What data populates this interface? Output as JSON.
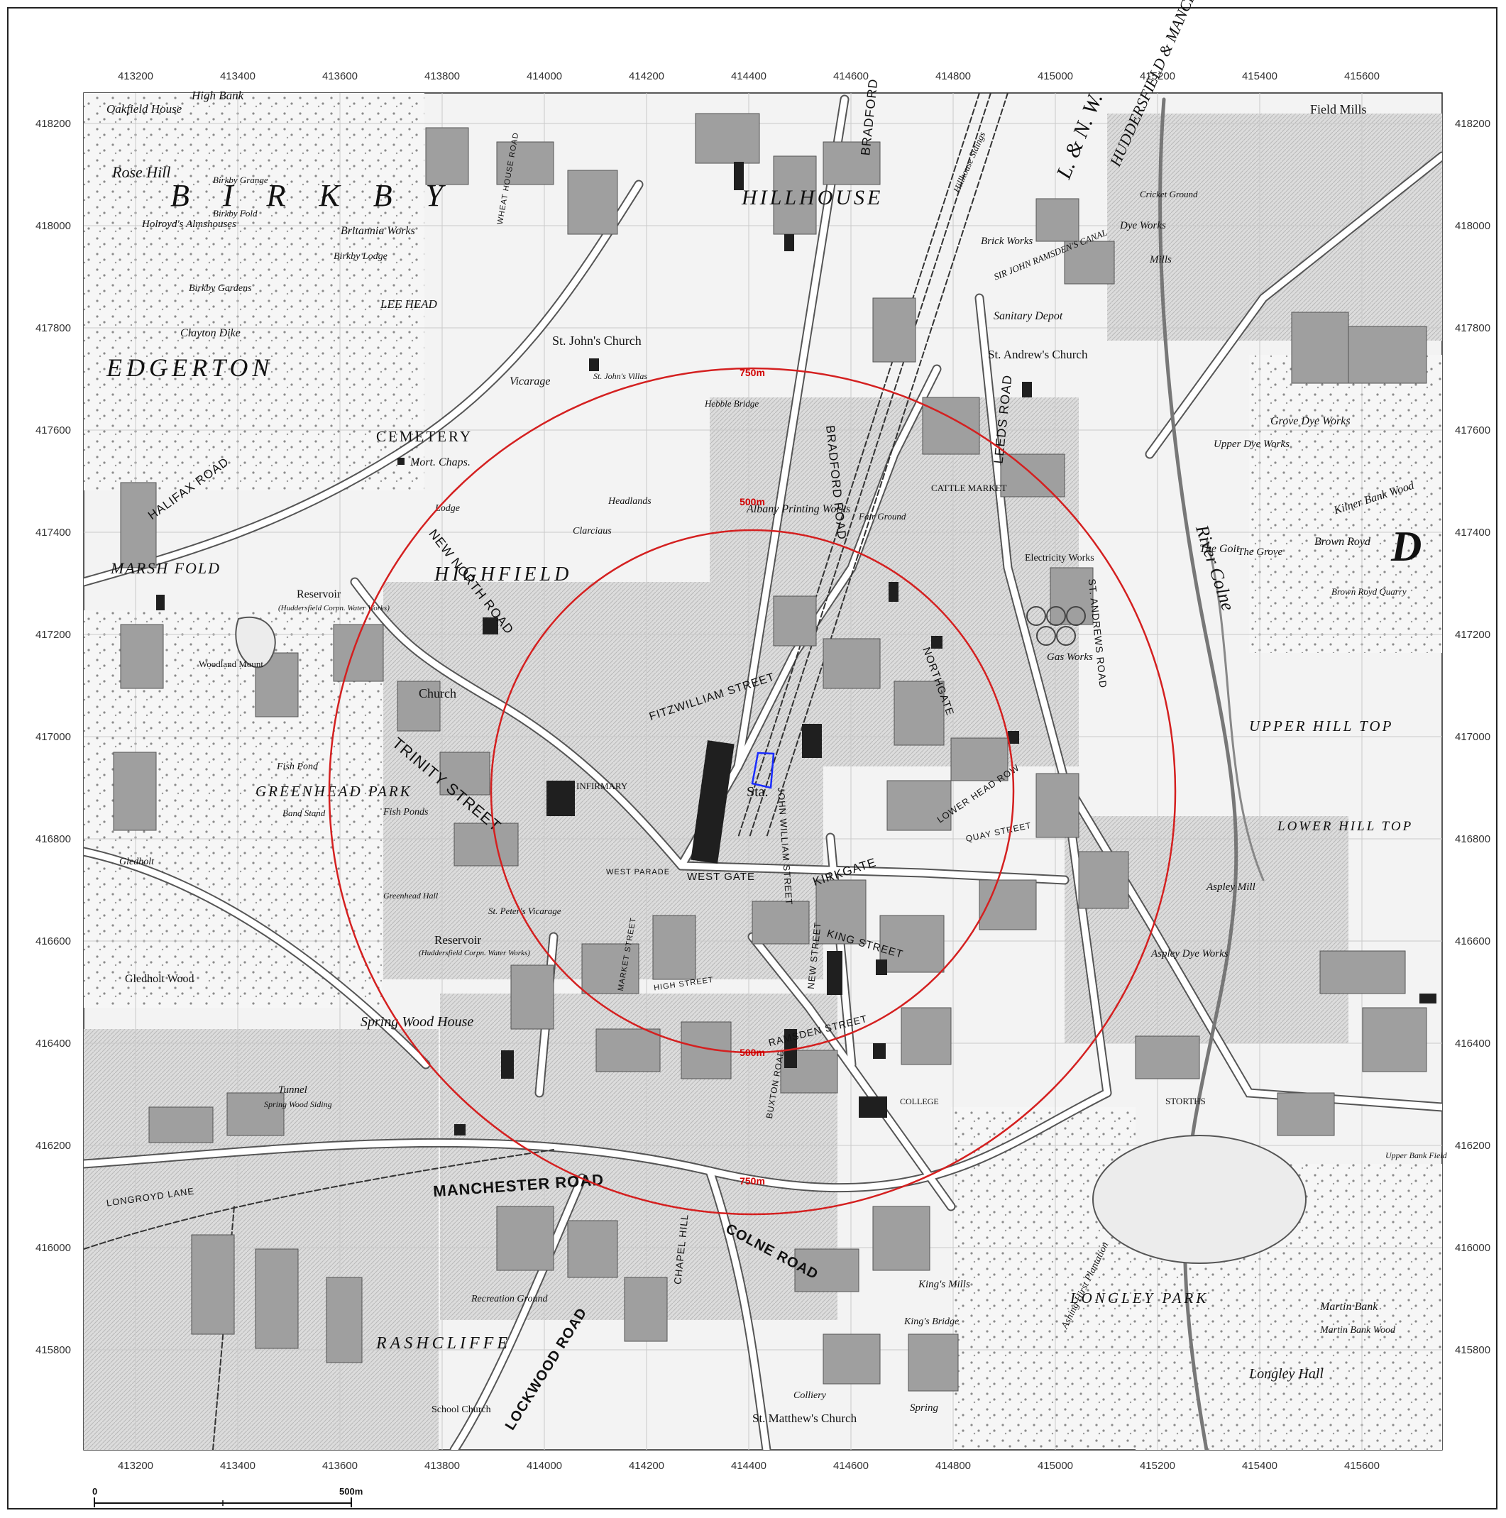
{
  "map": {
    "axis": {
      "x_ticks": [
        "413200",
        "413400",
        "413600",
        "413800",
        "414000",
        "414200",
        "414400",
        "414600",
        "414800",
        "415000",
        "415200",
        "415400",
        "415600"
      ],
      "y_ticks": [
        "418200",
        "418000",
        "417800",
        "417600",
        "417400",
        "417200",
        "417000",
        "416800",
        "416600",
        "416400",
        "416200",
        "416000",
        "415800"
      ]
    },
    "rings": {
      "inner_label": "500m",
      "outer_label": "750m"
    },
    "scale_bar": {
      "start": "0",
      "end": "500m"
    },
    "colors": {
      "ring": "#d42020",
      "site": "#1a2cff",
      "building_fill": "#2a2a2a",
      "road": "#ffffff",
      "terrain": "#e4e4e4"
    },
    "districts": {
      "birkby": "B I R K B Y",
      "edgerton": "EDGERTON",
      "hillhouse": "HILLHOUSE",
      "highfield": "HIGHFIELD",
      "marsh_fold": "MARSH FOLD",
      "rashcliffe": "RASHCLIFFE",
      "longley_park": "LONGLEY PARK",
      "lower_hill_top": "LOWER HILL TOP",
      "upper_hill_top": "UPPER HILL TOP",
      "cemetery": "CEMETERY",
      "greenhead_park": "GREENHEAD PARK",
      "big_d": "D"
    },
    "places": {
      "oakfield_house": "Oakfield House",
      "high_bank": "High Bank",
      "rose_hill": "Rose Hill",
      "birkby_grange": "Birkby Grange",
      "birkby_fold": "Birkby Fold",
      "holroyds": "Holroyd's Almshouses",
      "britannia_works": "Britannia Works",
      "birkby_lodge": "Birkby Lodge",
      "birkby_gardens": "Birkby Gardens",
      "clayton_dike": "Clayton Dike",
      "lee_head": "LEE HEAD",
      "st_johns_church": "St. John's Church",
      "vicarage": "Vicarage",
      "st_johns_villas": "St. John's Villas",
      "hebble_bridge": "Hebble Bridge",
      "mort_chaps": "Mort. Chaps.",
      "lodge": "Lodge",
      "headlands": "Headlands",
      "clarcient": "Clarciaus",
      "albany": "Albany Printing Works",
      "reservoir_1": "Reservoir",
      "reservoir_note": "(Huddersfield Corpn. Water Works)",
      "woodland_mount": "Woodland Mount",
      "church": "Church",
      "fish_pond": "Fish Pond",
      "fish_ponds": "Fish Ponds",
      "band_stand": "Band Stand",
      "infirmary": "INFIRMARY",
      "sta": "Sta.",
      "greenhead_hall": "Greenhead Hall",
      "st_peters_vicarage": "St. Peter's Vicarage",
      "reservoir_2": "Reservoir",
      "gledholt": "Gledholt",
      "gledholt_wood": "Gledholt Wood",
      "spring_wood_house": "Spring Wood House",
      "tunnel": "Tunnel",
      "spring_wood_siding": "Spring Wood Siding",
      "recreation_ground": "Recreation Ground",
      "st_andrews_church": "St. Andrew's Church",
      "cattle_market": "CATTLE MARKET",
      "fair_ground": "Fair Ground",
      "electricity_works": "Electricity Works",
      "gas_works": "Gas Works",
      "sanitary_depot": "Sanitary Depot",
      "brick_works": "Brick Works",
      "dye_works": "Dye Works",
      "cricket_ground": "Cricket Ground",
      "mills": "Mills",
      "field_mills": "Field Mills",
      "river_colne": "River Colne",
      "the_goit": "The Goit",
      "the_grove": "The Grove",
      "brown_royd": "Brown Royd",
      "brown_royd_quarry": "Brown Royd Quarry",
      "kilner_bank_wood": "Kilner Bank Wood",
      "grove_dye_works": "Grove Dye Works",
      "upper_dye_works": "Upper Dye Works",
      "aspley_mill": "Aspley Mill",
      "aspley_dye_works": "Aspley Dye Works",
      "kings_mills": "King's Mills",
      "kings_bridge": "King's Bridge",
      "ashing_hirst": "Ashing Hirst Plantation",
      "longley_hall": "Longley Hall",
      "martin_bank": "Martin Bank",
      "martin_bank_wood": "Martin Bank Wood",
      "st_matthews": "St. Matthew's Church",
      "colliery": "Colliery",
      "school_church": "School Church",
      "college": "COLLEGE",
      "storths": "STORTHS",
      "upper_bank_field": "Upper Bank Field",
      "spring": "Spring",
      "l_nw": "L. & N. W.",
      "canal": "HUDDERSFIELD & MANCHESTER",
      "sir_john_ramsden": "SIR JOHN RAMSDEN'S CANAL",
      "hillhouse_sidings": "Hillhouse Sidings"
    },
    "streets": {
      "manchester_road": "MANCHESTER ROAD",
      "colne_road": "COLNE ROAD",
      "lockwood_road": "LOCKWOOD ROAD",
      "west_gate": "WEST GATE",
      "kirkgate": "KIRKGATE",
      "king_street": "KING STREET",
      "new_street": "NEW STREET",
      "ramsden_street": "RAMSDEN STREET",
      "high_street": "HIGH STREET",
      "fitzwilliam_street": "FITZWILLIAM STREET",
      "john_william_street": "JOHN WILLIAM STREET",
      "northgate": "NORTHGATE",
      "leeds_road": "LEEDS ROAD",
      "bradford_road": "BRADFORD ROAD",
      "halifax_road": "HALIFAX ROAD",
      "st_andrews_road": "ST. ANDREWS ROAD",
      "trinity_street": "TRINITY STREET",
      "west_parade": "WEST PARADE",
      "lower_head_row": "LOWER HEAD ROW",
      "quay_street": "QUAY STREET",
      "buxton_road": "BUXTON ROAD",
      "longroyd_lane": "LONGROYD LANE",
      "new_north_road": "NEW NORTH ROAD",
      "wheat_house_road": "WHEAT HOUSE ROAD",
      "storths_road": "STORTHS",
      "market_street": "MARKET STREET",
      "chapel_hill": "CHAPEL HILL",
      "bradford": "BRADFORD"
    }
  }
}
